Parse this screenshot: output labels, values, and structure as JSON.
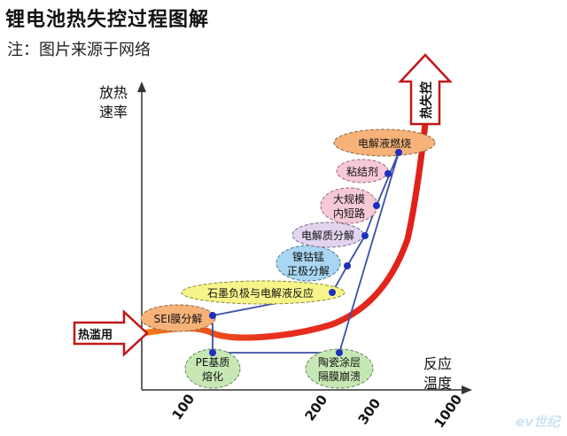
{
  "title": "锂电池热失控过程图解",
  "subtitle": "注：图片来源于网络",
  "watermark": "ev世纪",
  "y_axis_label": [
    "放热",
    "速率"
  ],
  "x_axis_label": [
    "反应",
    "温度"
  ],
  "x_ticks": [
    "100",
    "200",
    "300",
    "1000"
  ],
  "start_arrow_label": "热滥用",
  "end_arrow_label": "热失控",
  "stages": [
    {
      "id": "sei",
      "lines": [
        "SEI膜分解"
      ],
      "color": "#f7b27a"
    },
    {
      "id": "pe",
      "lines": [
        "PE基质",
        "熔化"
      ],
      "color": "#c7e8b4"
    },
    {
      "id": "graphite",
      "lines": [
        "石墨负极与电解液反应"
      ],
      "color": "#f7f58a"
    },
    {
      "id": "ceramic",
      "lines": [
        "陶瓷涂层",
        "隔膜崩溃"
      ],
      "color": "#c7e8b4"
    },
    {
      "id": "cathode",
      "lines": [
        "镍钴锰",
        "正极分解"
      ],
      "color": "#a9d6f2"
    },
    {
      "id": "electrolyte",
      "lines": [
        "电解质分解"
      ],
      "color": "#e2d4ee"
    },
    {
      "id": "short",
      "lines": [
        "大规模",
        "内短路"
      ],
      "color": "#f6c9d6"
    },
    {
      "id": "binder",
      "lines": [
        "粘结剂"
      ],
      "color": "#f6c9d6"
    },
    {
      "id": "combust",
      "lines": [
        "电解液燃烧"
      ],
      "color": "#f7b27a"
    }
  ],
  "colors": {
    "curve": "#e0201a",
    "path": "#3d4fa8",
    "node": "#1e2fc0",
    "arrow": "#c01818"
  }
}
